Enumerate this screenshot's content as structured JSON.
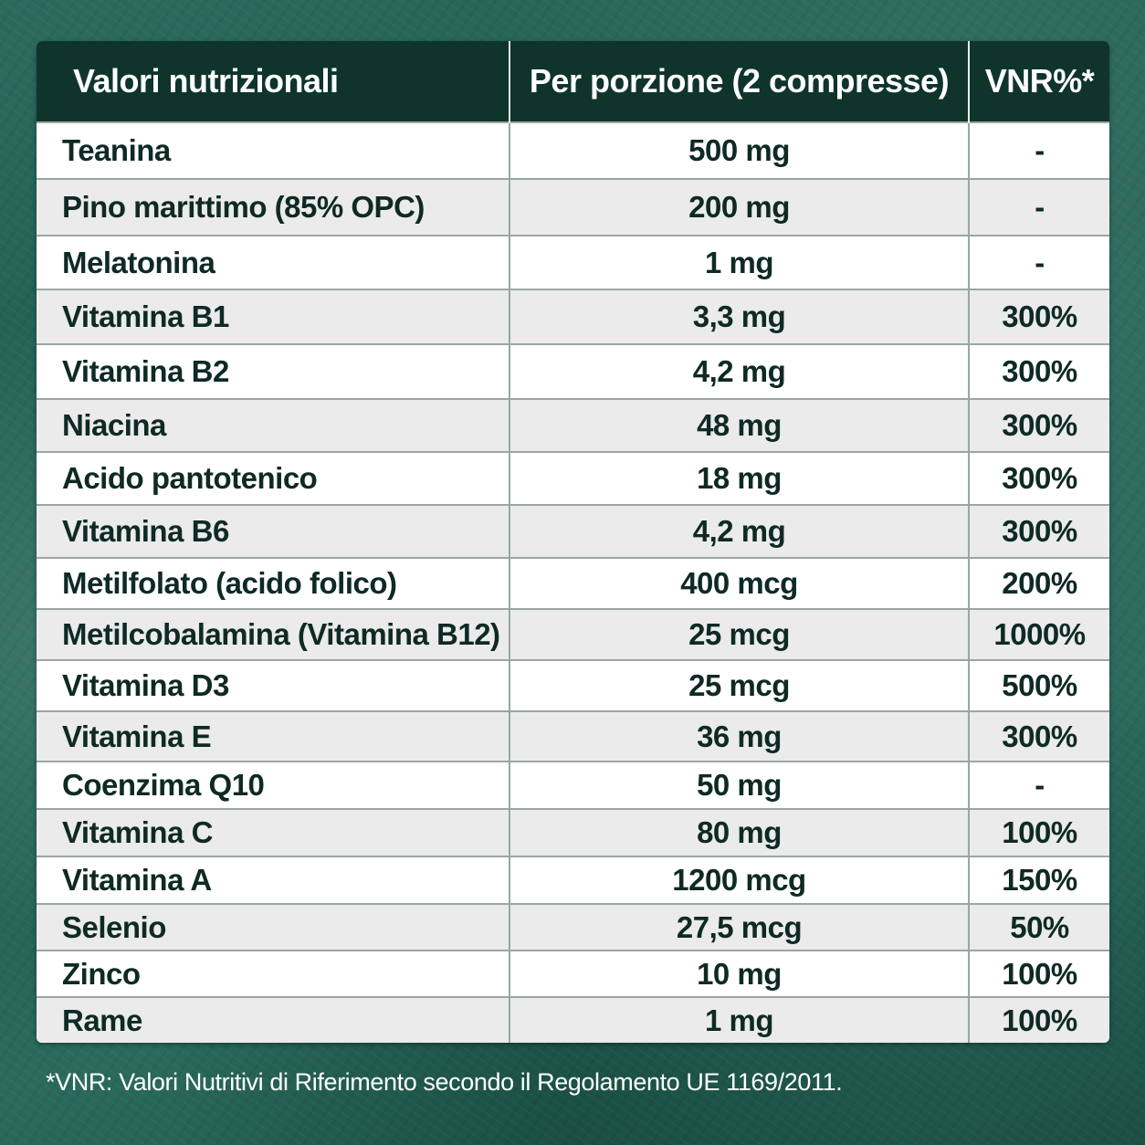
{
  "header": {
    "col_nutrient": "Valori nutrizionali",
    "col_amount": "Per porzione (2 compresse)",
    "col_vnr": "VNR%*"
  },
  "rows": [
    {
      "name": "Teanina",
      "amount": "500 mg",
      "vnr": "-"
    },
    {
      "name": "Pino marittimo (85% OPC)",
      "amount": "200 mg",
      "vnr": "-"
    },
    {
      "name": "Melatonina",
      "amount": "1 mg",
      "vnr": "-"
    },
    {
      "name": "Vitamina B1",
      "amount": "3,3 mg",
      "vnr": "300%"
    },
    {
      "name": "Vitamina B2",
      "amount": "4,2 mg",
      "vnr": "300%"
    },
    {
      "name": "Niacina",
      "amount": "48 mg",
      "vnr": "300%"
    },
    {
      "name": "Acido pantotenico",
      "amount": "18 mg",
      "vnr": "300%"
    },
    {
      "name": "Vitamina B6",
      "amount": "4,2 mg",
      "vnr": "300%"
    },
    {
      "name": "Metilfolato (acido folico)",
      "amount": "400 mcg",
      "vnr": "200%"
    },
    {
      "name": "Metilcobalamina (Vitamina B12)",
      "amount": "25 mcg",
      "vnr": "1000%"
    },
    {
      "name": "Vitamina D3",
      "amount": "25 mcg",
      "vnr": "500%"
    },
    {
      "name": "Vitamina E",
      "amount": "36 mg",
      "vnr": "300%"
    },
    {
      "name": "Coenzima Q10",
      "amount": "50 mg",
      "vnr": "-"
    },
    {
      "name": "Vitamina C",
      "amount": "80 mg",
      "vnr": "100%"
    },
    {
      "name": "Vitamina A",
      "amount": "1200 mcg",
      "vnr": "150%"
    },
    {
      "name": "Selenio",
      "amount": "27,5 mcg",
      "vnr": "50%"
    },
    {
      "name": "Zinco",
      "amount": "10 mg",
      "vnr": "100%"
    },
    {
      "name": "Rame",
      "amount": "1 mg",
      "vnr": "100%"
    }
  ],
  "footnote": "*VNR: Valori Nutritivi di Riferimento secondo il Regolamento UE  1169/2011.",
  "colors": {
    "header_bg": "#0f342c",
    "background": "#1f5a4e",
    "row_alt": "#ebebeb",
    "text": "#0f2a24"
  }
}
